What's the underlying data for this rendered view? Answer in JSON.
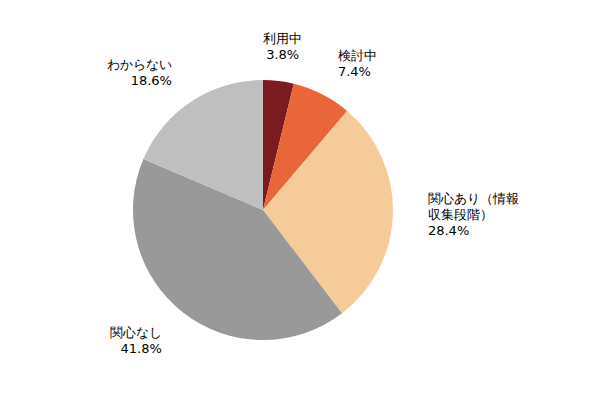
{
  "chart_data": {
    "type": "pie",
    "categories": [
      "利用中",
      "検討中",
      "関心あり（情報収集段階）",
      "関心なし",
      "わからない"
    ],
    "values": [
      3.8,
      7.4,
      28.4,
      41.8,
      18.6
    ],
    "value_labels": [
      "3.8%",
      "7.4%",
      "28.4%",
      "41.8%",
      "18.6%"
    ],
    "colors": [
      "#7b1a1f",
      "#e8663a",
      "#f5cb99",
      "#999999",
      "#bfbfbf"
    ],
    "data_labels": true
  }
}
